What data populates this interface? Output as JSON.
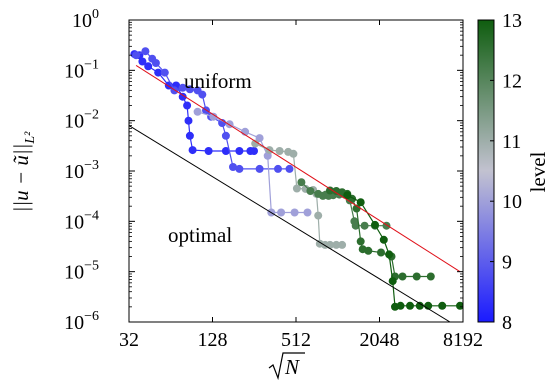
{
  "chart_data": {
    "type": "scatter",
    "xlabel_base": "N",
    "ylabel": "||u − ũ||",
    "ylabel_sub": "L²",
    "x_scale": "log2",
    "y_scale": "log10",
    "xlim": [
      32,
      8192
    ],
    "ylim": [
      1e-06,
      1
    ],
    "x_ticks": [
      32,
      128,
      512,
      2048,
      8192
    ],
    "x_tick_labels": [
      "32",
      "128",
      "512",
      "2048",
      "8192"
    ],
    "y_ticks": [
      1e-06,
      1e-05,
      0.0001,
      0.001,
      0.01,
      0.1,
      1
    ],
    "y_tick_mantissa": "10",
    "y_tick_exponents": [
      "−6",
      "−5",
      "−4",
      "−3",
      "−2",
      "−1",
      "0"
    ],
    "colorbar": {
      "label": "level",
      "min": 8,
      "max": 13,
      "ticks": [
        8,
        9,
        10,
        11,
        12,
        13
      ],
      "tick_labels": [
        "8",
        "9",
        "10",
        "11",
        "12",
        "13"
      ],
      "color_low": "#1a1aff",
      "color_mid": "#c2c2d0",
      "color_high": "#0f5d0f"
    },
    "reference_lines": [
      {
        "label": "uniform",
        "color": "#e0111a",
        "points": [
          [
            36,
            0.125
          ],
          [
            7800,
            1e-05
          ]
        ]
      },
      {
        "label": "optimal",
        "color": "#000000",
        "points": [
          [
            32,
            0.008
          ],
          [
            6600,
            1e-06
          ]
        ]
      }
    ],
    "series": [
      {
        "level": 8.3,
        "values": [
          [
            35,
            0.21
          ],
          [
            38,
            0.2
          ],
          [
            40,
            0.15
          ],
          [
            44,
            0.12
          ],
          [
            52,
            0.09
          ],
          [
            62,
            0.05
          ],
          [
            70,
            0.05
          ],
          [
            78,
            0.03
          ],
          [
            84,
            0.02
          ],
          [
            86,
            0.01
          ],
          [
            88,
            0.005
          ],
          [
            92,
            0.0026
          ],
          [
            120,
            0.0025
          ],
          [
            160,
            0.0025
          ],
          [
            200,
            0.0025
          ],
          [
            240,
            0.0025
          ],
          [
            255,
            0.0025
          ]
        ]
      },
      {
        "level": 8.8,
        "values": [
          [
            36,
            0.2
          ],
          [
            42,
            0.24
          ],
          [
            47,
            0.17
          ],
          [
            50,
            0.14
          ],
          [
            58,
            0.09
          ],
          [
            68,
            0.04
          ],
          [
            78,
            0.045
          ],
          [
            88,
            0.042
          ],
          [
            100,
            0.04
          ],
          [
            108,
            0.033
          ],
          [
            115,
            0.016
          ],
          [
            125,
            0.012
          ],
          [
            150,
            0.009
          ],
          [
            160,
            0.005
          ],
          [
            180,
            0.0012
          ],
          [
            200,
            0.0011
          ],
          [
            280,
            0.0011
          ],
          [
            380,
            0.0011
          ],
          [
            460,
            0.0011
          ]
        ]
      },
      {
        "level": 10.0,
        "values": [
          [
            100,
            0.015
          ],
          [
            130,
            0.012
          ],
          [
            170,
            0.0085
          ],
          [
            220,
            0.006
          ],
          [
            280,
            0.0045
          ],
          [
            320,
            0.002
          ],
          [
            340,
            0.00015
          ],
          [
            400,
            0.00015
          ],
          [
            500,
            0.00015
          ],
          [
            620,
            0.00015
          ]
        ]
      },
      {
        "level": 11.0,
        "values": [
          [
            260,
            0.0035
          ],
          [
            330,
            0.0026
          ],
          [
            390,
            0.0025
          ],
          [
            450,
            0.0024
          ],
          [
            490,
            0.0022
          ],
          [
            520,
            0.00045
          ],
          [
            600,
            0.00044
          ],
          [
            680,
            0.00042
          ],
          [
            720,
            0.00035
          ],
          [
            740,
            0.00013
          ],
          [
            760,
            3.6e-05
          ],
          [
            830,
            3.4e-05
          ],
          [
            900,
            3.4e-05
          ],
          [
            1000,
            3.4e-05
          ],
          [
            1100,
            3.4e-05
          ]
        ]
      },
      {
        "level": 12.2,
        "values": [
          [
            560,
            0.0006
          ],
          [
            650,
            0.0004
          ],
          [
            740,
            0.00035
          ],
          [
            800,
            0.00032
          ],
          [
            840,
            0.00034
          ],
          [
            880,
            0.00032
          ],
          [
            950,
            0.00033
          ],
          [
            1050,
            0.00034
          ],
          [
            1150,
            0.00034
          ],
          [
            1250,
            0.00026
          ],
          [
            1350,
            0.0001
          ],
          [
            1380,
            8.2e-05
          ],
          [
            1600,
            8.2e-05
          ],
          [
            1900,
            8.2e-05
          ],
          [
            2300,
            8.2e-05
          ]
        ]
      },
      {
        "level": 12.6,
        "values": [
          [
            900,
            0.00041
          ],
          [
            1000,
            0.0004
          ],
          [
            1100,
            0.00038
          ],
          [
            1200,
            0.00035
          ],
          [
            1300,
            0.00028
          ],
          [
            1400,
            0.00018
          ],
          [
            1500,
            4e-05
          ],
          [
            1550,
            2.8e-05
          ],
          [
            1700,
            2.6e-05
          ],
          [
            2100,
            2.4e-05
          ],
          [
            2500,
            2e-05
          ],
          [
            2650,
            8e-06
          ],
          [
            3000,
            8e-06
          ],
          [
            3800,
            8e-06
          ],
          [
            4800,
            8e-06
          ]
        ]
      },
      {
        "level": 13.0,
        "values": [
          [
            1200,
            0.00033
          ],
          [
            1500,
            0.00024
          ],
          [
            1900,
            8.5e-05
          ],
          [
            2200,
            4.3e-05
          ],
          [
            2400,
            2.2e-05
          ],
          [
            2550,
            6.5e-06
          ],
          [
            2650,
            2e-06
          ],
          [
            2900,
            2.1e-06
          ],
          [
            3400,
            2.1e-06
          ],
          [
            4000,
            2.1e-06
          ],
          [
            4600,
            2.1e-06
          ],
          [
            5800,
            2.1e-06
          ],
          [
            7800,
            2.1e-06
          ],
          [
            8600,
            2.1e-06
          ]
        ]
      }
    ]
  }
}
